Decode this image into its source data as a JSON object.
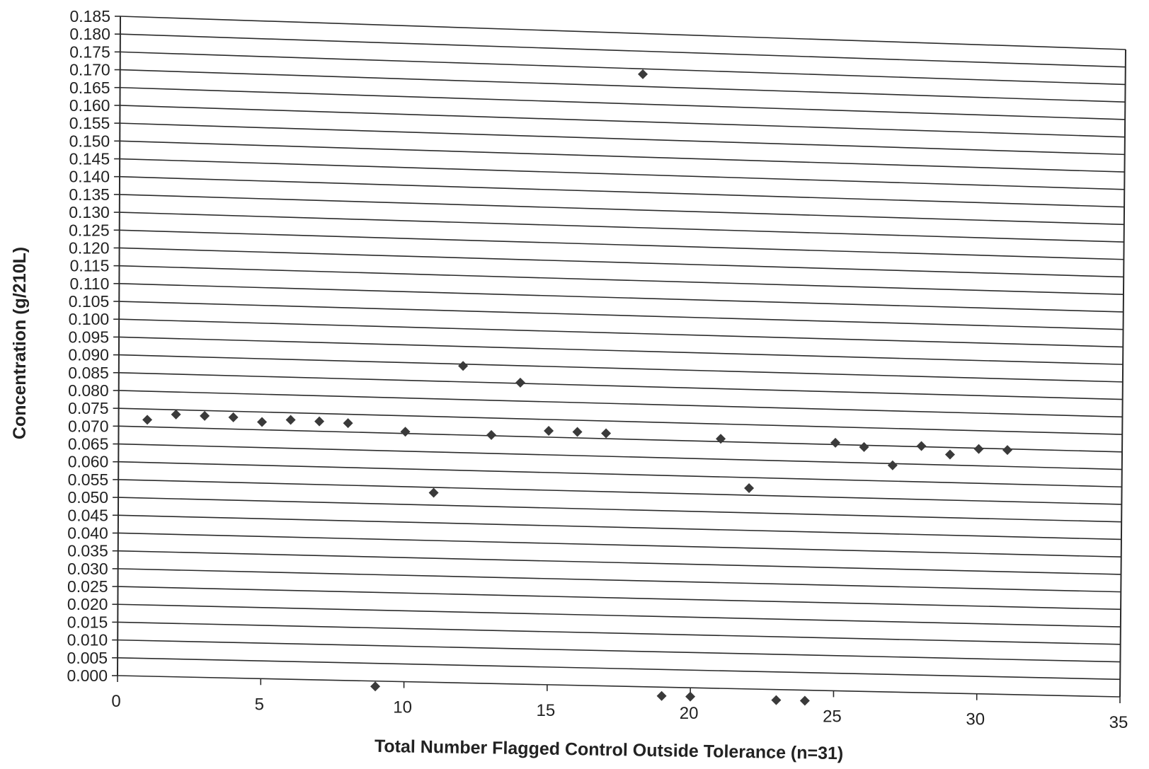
{
  "chart_data": {
    "type": "scatter",
    "title": "",
    "xlabel": "Total Number Flagged Control Outside Tolerance (n=31)",
    "ylabel": "Concentration (g/210L)",
    "xlim": [
      0,
      35
    ],
    "ylim": [
      0.0,
      0.185
    ],
    "x_ticks": [
      "0",
      "5",
      "10",
      "15",
      "20",
      "25",
      "30",
      "35"
    ],
    "y_ticks": [
      "0.000",
      "0.005",
      "0.010",
      "0.015",
      "0.020",
      "0.025",
      "0.030",
      "0.035",
      "0.040",
      "0.045",
      "0.050",
      "0.055",
      "0.060",
      "0.065",
      "0.070",
      "0.075",
      "0.080",
      "0.085",
      "0.090",
      "0.095",
      "0.100",
      "0.105",
      "0.110",
      "0.115",
      "0.120",
      "0.125",
      "0.130",
      "0.135",
      "0.140",
      "0.145",
      "0.150",
      "0.155",
      "0.160",
      "0.165",
      "0.170",
      "0.175",
      "0.180",
      "0.185"
    ],
    "grid": "horizontal",
    "marker": "diamond",
    "marker_color": "#3a3a3a",
    "points": [
      {
        "x": 1,
        "y": 0.072
      },
      {
        "x": 2,
        "y": 0.0737
      },
      {
        "x": 3,
        "y": 0.0735
      },
      {
        "x": 4,
        "y": 0.0733
      },
      {
        "x": 5,
        "y": 0.0722
      },
      {
        "x": 6,
        "y": 0.073
      },
      {
        "x": 7,
        "y": 0.0728
      },
      {
        "x": 8,
        "y": 0.0725
      },
      {
        "x": 9,
        "y": -0.0015
      },
      {
        "x": 10,
        "y": 0.0705
      },
      {
        "x": 11,
        "y": 0.0535
      },
      {
        "x": 12,
        "y": 0.0895
      },
      {
        "x": 13,
        "y": 0.0702
      },
      {
        "x": 14,
        "y": 0.0852
      },
      {
        "x": 15,
        "y": 0.0718
      },
      {
        "x": 16,
        "y": 0.0717
      },
      {
        "x": 17,
        "y": 0.0715
      },
      {
        "x": 18.2,
        "y": 0.1735
      },
      {
        "x": 19,
        "y": -0.0025
      },
      {
        "x": 20,
        "y": -0.0025
      },
      {
        "x": 21,
        "y": 0.0708
      },
      {
        "x": 22,
        "y": 0.057
      },
      {
        "x": 23,
        "y": -0.003
      },
      {
        "x": 24,
        "y": -0.003
      },
      {
        "x": 25,
        "y": 0.0705
      },
      {
        "x": 26,
        "y": 0.0695
      },
      {
        "x": 27,
        "y": 0.0645
      },
      {
        "x": 28,
        "y": 0.0702
      },
      {
        "x": 29,
        "y": 0.068
      },
      {
        "x": 30,
        "y": 0.0698
      },
      {
        "x": 31,
        "y": 0.0697
      }
    ]
  }
}
